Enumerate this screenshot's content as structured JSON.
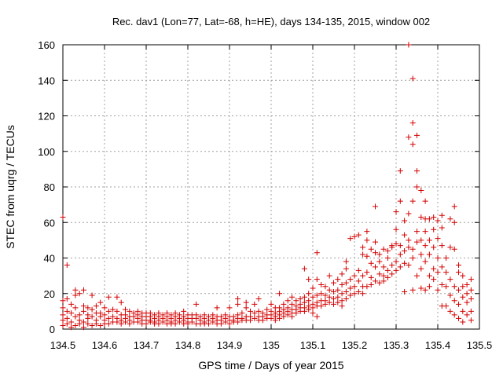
{
  "chart_data": {
    "type": "scatter",
    "title": "Rec. dav1 (Lon=77, Lat=-68, h=HE), days 134-135, 2015, window 002",
    "xlabel": "GPS time / Days of year 2015",
    "ylabel": "STEC from uqrg / TECUs",
    "xlim": [
      134.5,
      135.5
    ],
    "ylim": [
      0,
      160
    ],
    "xticks": [
      "134.5",
      "134.6",
      "134.7",
      "134.8",
      "134.9",
      "135",
      "135.1",
      "135.2",
      "135.3",
      "135.4",
      "135.5"
    ],
    "yticks": [
      "0",
      "20",
      "40",
      "60",
      "80",
      "100",
      "120",
      "140",
      "160"
    ],
    "grid": true,
    "marker": "+",
    "color": "#d40000",
    "points": [
      [
        134.5,
        63
      ],
      [
        134.5,
        16
      ],
      [
        134.5,
        12
      ],
      [
        134.5,
        8
      ],
      [
        134.5,
        5
      ],
      [
        134.5,
        2
      ],
      [
        134.51,
        36
      ],
      [
        134.51,
        17
      ],
      [
        134.51,
        10
      ],
      [
        134.51,
        6
      ],
      [
        134.51,
        3
      ],
      [
        134.52,
        14
      ],
      [
        134.52,
        9
      ],
      [
        134.52,
        4
      ],
      [
        134.52,
        1
      ],
      [
        134.53,
        22
      ],
      [
        134.53,
        19
      ],
      [
        134.53,
        12
      ],
      [
        134.53,
        7
      ],
      [
        134.53,
        2
      ],
      [
        134.54,
        20
      ],
      [
        134.54,
        8
      ],
      [
        134.54,
        5
      ],
      [
        134.54,
        3
      ],
      [
        134.55,
        22
      ],
      [
        134.55,
        13
      ],
      [
        134.55,
        10
      ],
      [
        134.55,
        4
      ],
      [
        134.55,
        1
      ],
      [
        134.56,
        12
      ],
      [
        134.56,
        8
      ],
      [
        134.56,
        6
      ],
      [
        134.56,
        3
      ],
      [
        134.57,
        19
      ],
      [
        134.57,
        11
      ],
      [
        134.57,
        7
      ],
      [
        134.57,
        2
      ],
      [
        134.58,
        13
      ],
      [
        134.58,
        9
      ],
      [
        134.58,
        5
      ],
      [
        134.58,
        3
      ],
      [
        134.59,
        15
      ],
      [
        134.59,
        9
      ],
      [
        134.59,
        7
      ],
      [
        134.59,
        2
      ],
      [
        134.6,
        12
      ],
      [
        134.6,
        8
      ],
      [
        134.6,
        5
      ],
      [
        134.6,
        3
      ],
      [
        134.61,
        18
      ],
      [
        134.61,
        10
      ],
      [
        134.61,
        6
      ],
      [
        134.61,
        3
      ],
      [
        134.62,
        11
      ],
      [
        134.62,
        7
      ],
      [
        134.62,
        4
      ],
      [
        134.63,
        18
      ],
      [
        134.63,
        10
      ],
      [
        134.63,
        6
      ],
      [
        134.63,
        4
      ],
      [
        134.64,
        15
      ],
      [
        134.64,
        8
      ],
      [
        134.64,
        5
      ],
      [
        134.64,
        3
      ],
      [
        134.65,
        11
      ],
      [
        134.65,
        8
      ],
      [
        134.65,
        6
      ],
      [
        134.65,
        4
      ],
      [
        134.66,
        10
      ],
      [
        134.66,
        7
      ],
      [
        134.66,
        5
      ],
      [
        134.66,
        3
      ],
      [
        134.67,
        9
      ],
      [
        134.67,
        7
      ],
      [
        134.67,
        4
      ],
      [
        134.68,
        10
      ],
      [
        134.68,
        8
      ],
      [
        134.68,
        6
      ],
      [
        134.68,
        4
      ],
      [
        134.69,
        9
      ],
      [
        134.69,
        7
      ],
      [
        134.69,
        5
      ],
      [
        134.69,
        3
      ],
      [
        134.7,
        9
      ],
      [
        134.7,
        7
      ],
      [
        134.7,
        5
      ],
      [
        134.7,
        3
      ],
      [
        134.71,
        9
      ],
      [
        134.71,
        7
      ],
      [
        134.71,
        5
      ],
      [
        134.71,
        4
      ],
      [
        134.72,
        8
      ],
      [
        134.72,
        6
      ],
      [
        134.72,
        4
      ],
      [
        134.72,
        3
      ],
      [
        134.73,
        9
      ],
      [
        134.73,
        7
      ],
      [
        134.73,
        5
      ],
      [
        134.73,
        3
      ],
      [
        134.74,
        8
      ],
      [
        134.74,
        6
      ],
      [
        134.74,
        4
      ],
      [
        134.75,
        9
      ],
      [
        134.75,
        7
      ],
      [
        134.75,
        5
      ],
      [
        134.75,
        3
      ],
      [
        134.76,
        8
      ],
      [
        134.76,
        6
      ],
      [
        134.76,
        4
      ],
      [
        134.76,
        3
      ],
      [
        134.77,
        9
      ],
      [
        134.77,
        7
      ],
      [
        134.77,
        5
      ],
      [
        134.77,
        3
      ],
      [
        134.78,
        8
      ],
      [
        134.78,
        6
      ],
      [
        134.78,
        4
      ],
      [
        134.79,
        10
      ],
      [
        134.79,
        7
      ],
      [
        134.79,
        5
      ],
      [
        134.79,
        3
      ],
      [
        134.8,
        8
      ],
      [
        134.8,
        6
      ],
      [
        134.8,
        4
      ],
      [
        134.8,
        3
      ],
      [
        134.81,
        8
      ],
      [
        134.81,
        6
      ],
      [
        134.81,
        4
      ],
      [
        134.82,
        14
      ],
      [
        134.82,
        8
      ],
      [
        134.82,
        6
      ],
      [
        134.82,
        3
      ],
      [
        134.83,
        7
      ],
      [
        134.83,
        5
      ],
      [
        134.83,
        3
      ],
      [
        134.84,
        8
      ],
      [
        134.84,
        6
      ],
      [
        134.84,
        4
      ],
      [
        134.84,
        3
      ],
      [
        134.85,
        7
      ],
      [
        134.85,
        5
      ],
      [
        134.85,
        3
      ],
      [
        134.86,
        8
      ],
      [
        134.86,
        6
      ],
      [
        134.86,
        4
      ],
      [
        134.87,
        12
      ],
      [
        134.87,
        7
      ],
      [
        134.87,
        5
      ],
      [
        134.87,
        3
      ],
      [
        134.88,
        7
      ],
      [
        134.88,
        5
      ],
      [
        134.88,
        3
      ],
      [
        134.89,
        8
      ],
      [
        134.89,
        6
      ],
      [
        134.89,
        4
      ],
      [
        134.9,
        12
      ],
      [
        134.9,
        7
      ],
      [
        134.9,
        5
      ],
      [
        134.9,
        3
      ],
      [
        134.91,
        7
      ],
      [
        134.91,
        5
      ],
      [
        134.91,
        4
      ],
      [
        134.92,
        17
      ],
      [
        134.92,
        14
      ],
      [
        134.92,
        8
      ],
      [
        134.92,
        6
      ],
      [
        134.92,
        4
      ],
      [
        134.93,
        9
      ],
      [
        134.93,
        6
      ],
      [
        134.93,
        5
      ],
      [
        134.94,
        15
      ],
      [
        134.94,
        12
      ],
      [
        134.94,
        7
      ],
      [
        134.94,
        5
      ],
      [
        134.95,
        10
      ],
      [
        134.95,
        7
      ],
      [
        134.95,
        5
      ],
      [
        134.96,
        14
      ],
      [
        134.96,
        9
      ],
      [
        134.96,
        6
      ],
      [
        134.97,
        17
      ],
      [
        134.97,
        10
      ],
      [
        134.97,
        7
      ],
      [
        134.97,
        5
      ],
      [
        134.98,
        9
      ],
      [
        134.98,
        7
      ],
      [
        134.98,
        5
      ],
      [
        134.99,
        11
      ],
      [
        134.99,
        8
      ],
      [
        134.99,
        6
      ],
      [
        135.0,
        14
      ],
      [
        135.0,
        10
      ],
      [
        135.0,
        8
      ],
      [
        135.0,
        6
      ],
      [
        135.01,
        12
      ],
      [
        135.01,
        9
      ],
      [
        135.01,
        7
      ],
      [
        135.01,
        5
      ],
      [
        135.02,
        20
      ],
      [
        135.02,
        12
      ],
      [
        135.02,
        10
      ],
      [
        135.02,
        8
      ],
      [
        135.02,
        6
      ],
      [
        135.03,
        14
      ],
      [
        135.03,
        11
      ],
      [
        135.03,
        9
      ],
      [
        135.03,
        7
      ],
      [
        135.04,
        16
      ],
      [
        135.04,
        12
      ],
      [
        135.04,
        10
      ],
      [
        135.04,
        8
      ],
      [
        135.05,
        18
      ],
      [
        135.05,
        14
      ],
      [
        135.05,
        11
      ],
      [
        135.05,
        9
      ],
      [
        135.05,
        7
      ],
      [
        135.06,
        16
      ],
      [
        135.06,
        13
      ],
      [
        135.06,
        11
      ],
      [
        135.06,
        9
      ],
      [
        135.07,
        17
      ],
      [
        135.07,
        14
      ],
      [
        135.07,
        12
      ],
      [
        135.07,
        10
      ],
      [
        135.08,
        34
      ],
      [
        135.08,
        18
      ],
      [
        135.08,
        15
      ],
      [
        135.08,
        12
      ],
      [
        135.08,
        10
      ],
      [
        135.09,
        28
      ],
      [
        135.09,
        20
      ],
      [
        135.09,
        16
      ],
      [
        135.09,
        13
      ],
      [
        135.09,
        11
      ],
      [
        135.1,
        23
      ],
      [
        135.1,
        18
      ],
      [
        135.1,
        14
      ],
      [
        135.1,
        12
      ],
      [
        135.1,
        9
      ],
      [
        135.11,
        43
      ],
      [
        135.11,
        28
      ],
      [
        135.11,
        19
      ],
      [
        135.11,
        15
      ],
      [
        135.11,
        13
      ],
      [
        135.11,
        7
      ],
      [
        135.12,
        25
      ],
      [
        135.12,
        20
      ],
      [
        135.12,
        16
      ],
      [
        135.12,
        13
      ],
      [
        135.13,
        24
      ],
      [
        135.13,
        19
      ],
      [
        135.13,
        16
      ],
      [
        135.13,
        14
      ],
      [
        135.14,
        30
      ],
      [
        135.14,
        22
      ],
      [
        135.14,
        18
      ],
      [
        135.14,
        15
      ],
      [
        135.15,
        26
      ],
      [
        135.15,
        21
      ],
      [
        135.15,
        17
      ],
      [
        135.15,
        14
      ],
      [
        135.16,
        28
      ],
      [
        135.16,
        22
      ],
      [
        135.16,
        18
      ],
      [
        135.16,
        15
      ],
      [
        135.17,
        31
      ],
      [
        135.17,
        25
      ],
      [
        135.17,
        20
      ],
      [
        135.17,
        16
      ],
      [
        135.17,
        13
      ],
      [
        135.18,
        38
      ],
      [
        135.18,
        34
      ],
      [
        135.18,
        26
      ],
      [
        135.18,
        21
      ],
      [
        135.18,
        17
      ],
      [
        135.19,
        51
      ],
      [
        135.19,
        28
      ],
      [
        135.19,
        23
      ],
      [
        135.19,
        19
      ],
      [
        135.2,
        52
      ],
      [
        135.2,
        30
      ],
      [
        135.2,
        24
      ],
      [
        135.2,
        20
      ],
      [
        135.21,
        53
      ],
      [
        135.21,
        33
      ],
      [
        135.21,
        27
      ],
      [
        135.21,
        21
      ],
      [
        135.22,
        46
      ],
      [
        135.22,
        42
      ],
      [
        135.22,
        30
      ],
      [
        135.22,
        24
      ],
      [
        135.22,
        20
      ],
      [
        135.23,
        55
      ],
      [
        135.23,
        50
      ],
      [
        135.23,
        41
      ],
      [
        135.23,
        32
      ],
      [
        135.23,
        24
      ],
      [
        135.24,
        45
      ],
      [
        135.24,
        37
      ],
      [
        135.24,
        29
      ],
      [
        135.24,
        25
      ],
      [
        135.25,
        69
      ],
      [
        135.25,
        49
      ],
      [
        135.25,
        43
      ],
      [
        135.25,
        35
      ],
      [
        135.25,
        27
      ],
      [
        135.26,
        42
      ],
      [
        135.26,
        38
      ],
      [
        135.26,
        31
      ],
      [
        135.26,
        26
      ],
      [
        135.27,
        45
      ],
      [
        135.27,
        35
      ],
      [
        135.27,
        30
      ],
      [
        135.27,
        27
      ],
      [
        135.28,
        44
      ],
      [
        135.28,
        40
      ],
      [
        135.28,
        33
      ],
      [
        135.28,
        29
      ],
      [
        135.29,
        47
      ],
      [
        135.29,
        46
      ],
      [
        135.29,
        36
      ],
      [
        135.29,
        31
      ],
      [
        135.3,
        66
      ],
      [
        135.3,
        56
      ],
      [
        135.3,
        48
      ],
      [
        135.3,
        38
      ],
      [
        135.3,
        33
      ],
      [
        135.31,
        89
      ],
      [
        135.31,
        72
      ],
      [
        135.31,
        47
      ],
      [
        135.31,
        42
      ],
      [
        135.31,
        35
      ],
      [
        135.32,
        61
      ],
      [
        135.32,
        53
      ],
      [
        135.32,
        44
      ],
      [
        135.32,
        37
      ],
      [
        135.32,
        21
      ],
      [
        135.33,
        160
      ],
      [
        135.33,
        108
      ],
      [
        135.33,
        65
      ],
      [
        135.33,
        50
      ],
      [
        135.33,
        46
      ],
      [
        135.33,
        36
      ],
      [
        135.34,
        141
      ],
      [
        135.34,
        116
      ],
      [
        135.34,
        104
      ],
      [
        135.34,
        72
      ],
      [
        135.34,
        45
      ],
      [
        135.34,
        40
      ],
      [
        135.34,
        22
      ],
      [
        135.35,
        109
      ],
      [
        135.35,
        89
      ],
      [
        135.35,
        80
      ],
      [
        135.35,
        55
      ],
      [
        135.35,
        49
      ],
      [
        135.35,
        30
      ],
      [
        135.36,
        78
      ],
      [
        135.36,
        63
      ],
      [
        135.36,
        50
      ],
      [
        135.36,
        42
      ],
      [
        135.36,
        34
      ],
      [
        135.36,
        23
      ],
      [
        135.37,
        72
      ],
      [
        135.37,
        62
      ],
      [
        135.37,
        55
      ],
      [
        135.37,
        47
      ],
      [
        135.37,
        38
      ],
      [
        135.37,
        22
      ],
      [
        135.38,
        62
      ],
      [
        135.38,
        50
      ],
      [
        135.38,
        42
      ],
      [
        135.38,
        30
      ],
      [
        135.38,
        24
      ],
      [
        135.39,
        63
      ],
      [
        135.39,
        56
      ],
      [
        135.39,
        46
      ],
      [
        135.39,
        34
      ],
      [
        135.39,
        28
      ],
      [
        135.4,
        61
      ],
      [
        135.4,
        51
      ],
      [
        135.4,
        40
      ],
      [
        135.4,
        32
      ],
      [
        135.4,
        22
      ],
      [
        135.41,
        64
      ],
      [
        135.41,
        57
      ],
      [
        135.41,
        47
      ],
      [
        135.41,
        35
      ],
      [
        135.41,
        25
      ],
      [
        135.41,
        13
      ],
      [
        135.42,
        40
      ],
      [
        135.42,
        32
      ],
      [
        135.42,
        24
      ],
      [
        135.42,
        13
      ],
      [
        135.43,
        62
      ],
      [
        135.43,
        46
      ],
      [
        135.43,
        28
      ],
      [
        135.43,
        19
      ],
      [
        135.43,
        10
      ],
      [
        135.44,
        69
      ],
      [
        135.44,
        60
      ],
      [
        135.44,
        45
      ],
      [
        135.44,
        24
      ],
      [
        135.44,
        16
      ],
      [
        135.44,
        8
      ],
      [
        135.45,
        36
      ],
      [
        135.45,
        32
      ],
      [
        135.45,
        22
      ],
      [
        135.45,
        14
      ],
      [
        135.45,
        6
      ],
      [
        135.46,
        30
      ],
      [
        135.46,
        24
      ],
      [
        135.46,
        18
      ],
      [
        135.46,
        10
      ],
      [
        135.46,
        4
      ],
      [
        135.47,
        25
      ],
      [
        135.47,
        20
      ],
      [
        135.47,
        15
      ],
      [
        135.47,
        8
      ],
      [
        135.48,
        28
      ],
      [
        135.48,
        22
      ],
      [
        135.48,
        17
      ],
      [
        135.48,
        10
      ],
      [
        135.48,
        5
      ]
    ]
  }
}
